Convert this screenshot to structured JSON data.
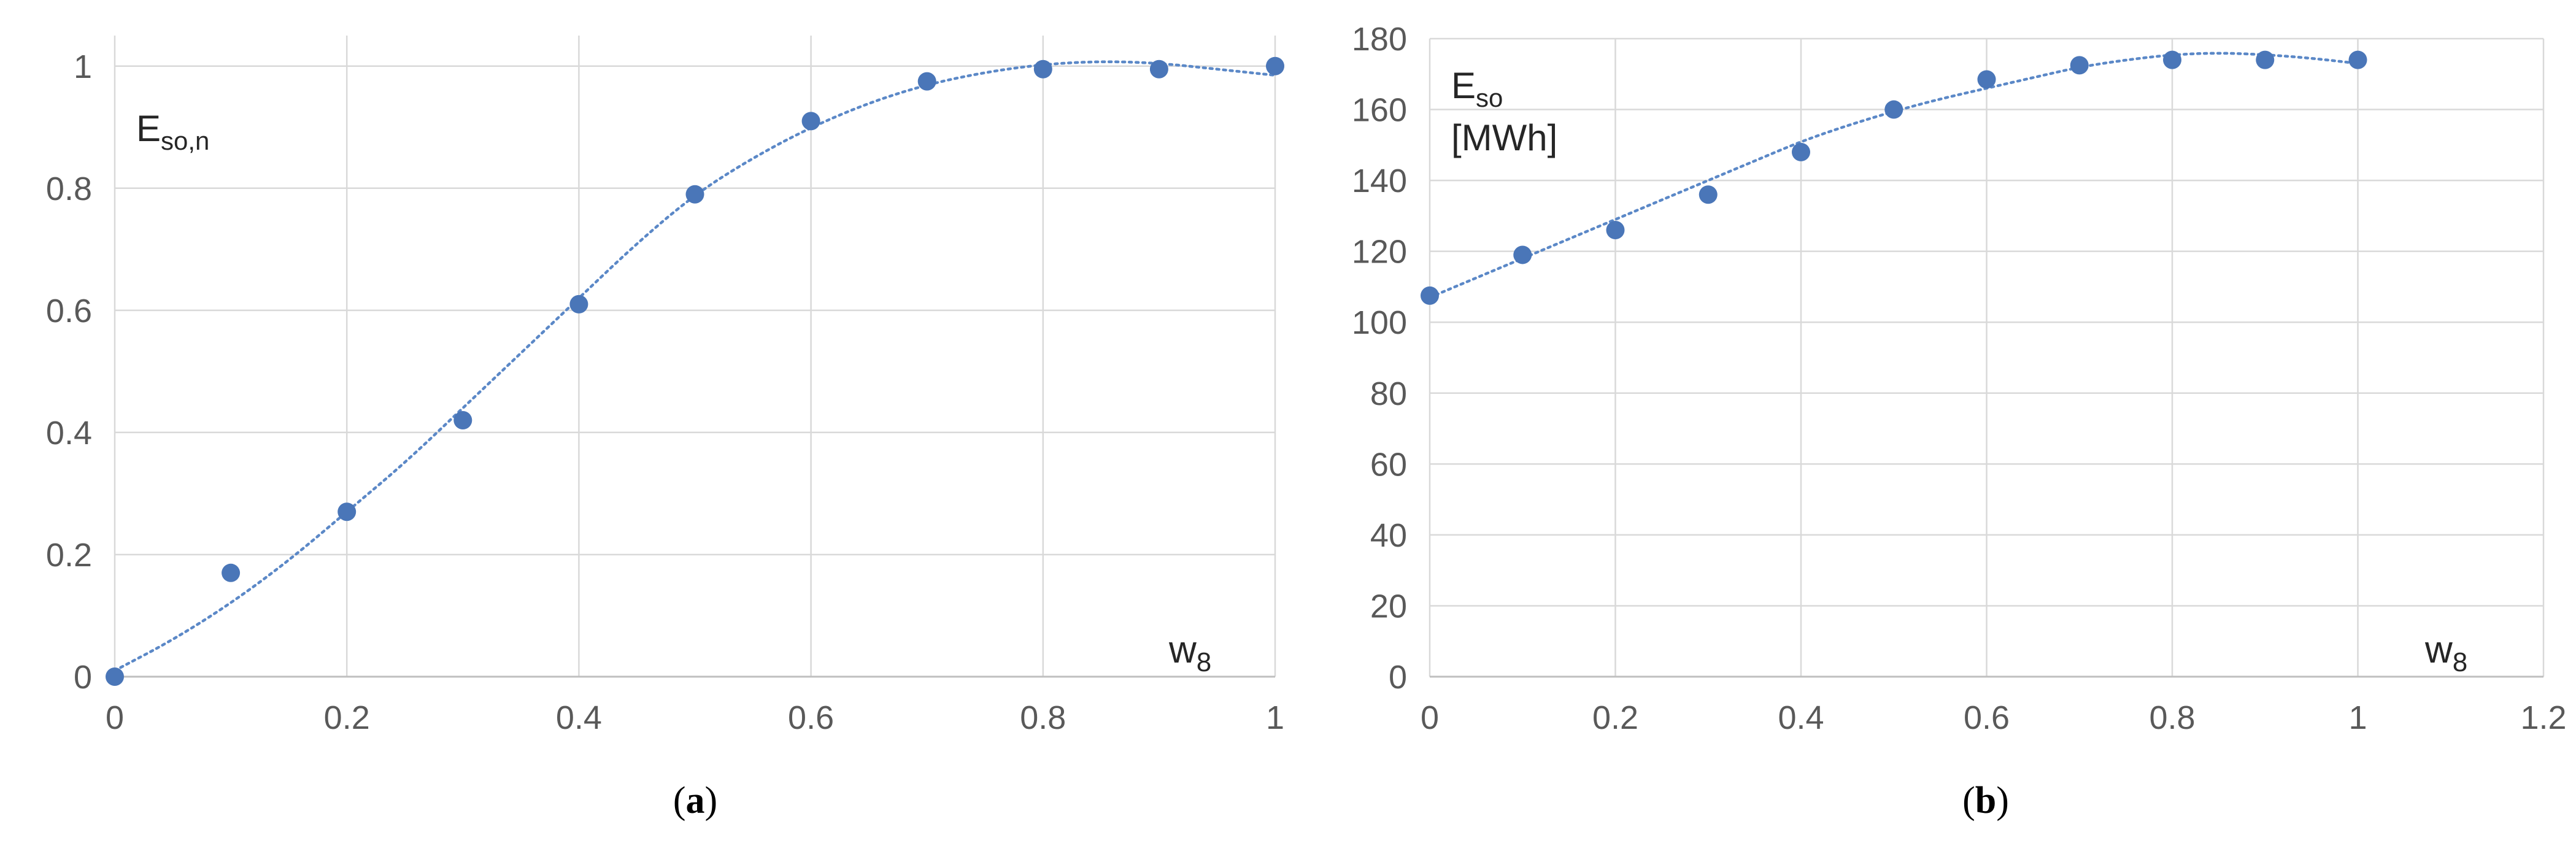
{
  "chart_data": [
    {
      "panel": "a",
      "type": "scatter",
      "title": "",
      "ylabel_main": "E",
      "ylabel_sub": "so,n",
      "ylabel_unit": "",
      "xlabel_main": "w",
      "xlabel_sub": "8",
      "xlim": [
        0,
        1
      ],
      "ylim": [
        0,
        1.05
      ],
      "xticks": [
        0,
        0.2,
        0.4,
        0.6,
        0.8,
        1
      ],
      "xtick_labels": [
        "0",
        "0.2",
        "0.4",
        "0.6",
        "0.8",
        "1"
      ],
      "yticks": [
        0,
        0.2,
        0.4,
        0.6,
        0.8,
        1
      ],
      "ytick_labels": [
        "0",
        "0.2",
        "0.4",
        "0.6",
        "0.8",
        "1"
      ],
      "x_grid": [
        0,
        0.2,
        0.4,
        0.6,
        0.8,
        1
      ],
      "y_grid": [
        0.2,
        0.4,
        0.6,
        0.8,
        1
      ],
      "grid": true,
      "series": [
        {
          "name": "E_so,n",
          "x": [
            0,
            0.1,
            0.2,
            0.3,
            0.4,
            0.5,
            0.6,
            0.7,
            0.8,
            0.9,
            1.0
          ],
          "y": [
            0.0,
            0.17,
            0.27,
            0.42,
            0.61,
            0.79,
            0.91,
            0.975,
            0.995,
            0.995,
            1.0
          ]
        }
      ],
      "trendline": {
        "style": "dotted",
        "x": [
          0,
          0.05,
          0.1,
          0.15,
          0.2,
          0.25,
          0.3,
          0.35,
          0.4,
          0.45,
          0.5,
          0.55,
          0.6,
          0.65,
          0.7,
          0.75,
          0.8,
          0.85,
          0.9,
          0.95,
          1.0
        ],
        "y": [
          0.01,
          0.06,
          0.12,
          0.19,
          0.27,
          0.35,
          0.44,
          0.53,
          0.62,
          0.71,
          0.79,
          0.85,
          0.9,
          0.94,
          0.97,
          0.99,
          1.003,
          1.008,
          1.005,
          0.995,
          0.985
        ]
      },
      "caption": "a"
    },
    {
      "panel": "b",
      "type": "scatter",
      "title": "",
      "ylabel_main": "E",
      "ylabel_sub": "so",
      "ylabel_unit": "[MWh]",
      "xlabel_main": "w",
      "xlabel_sub": "8",
      "xlim": [
        0,
        1.2
      ],
      "ylim": [
        0,
        180
      ],
      "xticks": [
        0,
        0.2,
        0.4,
        0.6,
        0.8,
        1,
        1.2
      ],
      "xtick_labels": [
        "0",
        "0.2",
        "0.4",
        "0.6",
        "0.8",
        "1",
        "1.2"
      ],
      "yticks": [
        0,
        20,
        40,
        60,
        80,
        100,
        120,
        140,
        160,
        180
      ],
      "ytick_labels": [
        "0",
        "20",
        "40",
        "60",
        "80",
        "100",
        "120",
        "140",
        "160",
        "180"
      ],
      "x_grid": [
        0,
        0.2,
        0.4,
        0.6,
        0.8,
        1,
        1.2
      ],
      "y_grid": [
        20,
        40,
        60,
        80,
        100,
        120,
        140,
        160,
        180
      ],
      "grid": true,
      "series": [
        {
          "name": "E_so",
          "x": [
            0,
            0.1,
            0.2,
            0.3,
            0.4,
            0.5,
            0.6,
            0.7,
            0.8,
            0.9,
            1.0
          ],
          "y": [
            107.5,
            119,
            126,
            136,
            148,
            160,
            168.5,
            172.5,
            174,
            174,
            174
          ]
        }
      ],
      "trendline": {
        "style": "dotted",
        "x": [
          0,
          0.05,
          0.1,
          0.15,
          0.2,
          0.25,
          0.3,
          0.35,
          0.4,
          0.45,
          0.5,
          0.55,
          0.6,
          0.65,
          0.7,
          0.75,
          0.8,
          0.85,
          0.9,
          0.95,
          1.0
        ],
        "y": [
          107,
          112.5,
          118,
          123.5,
          129,
          134.5,
          140,
          145.5,
          151,
          155.5,
          159.5,
          163,
          166,
          169,
          172,
          174,
          175.5,
          176,
          175.5,
          174.5,
          173
        ]
      },
      "caption": "b"
    }
  ],
  "colors": {
    "marker": "#4a76b8",
    "trendline": "#5b88c7",
    "grid": "#d9d9d9",
    "axis": "#bfbfbf",
    "tick_text": "#595959"
  }
}
